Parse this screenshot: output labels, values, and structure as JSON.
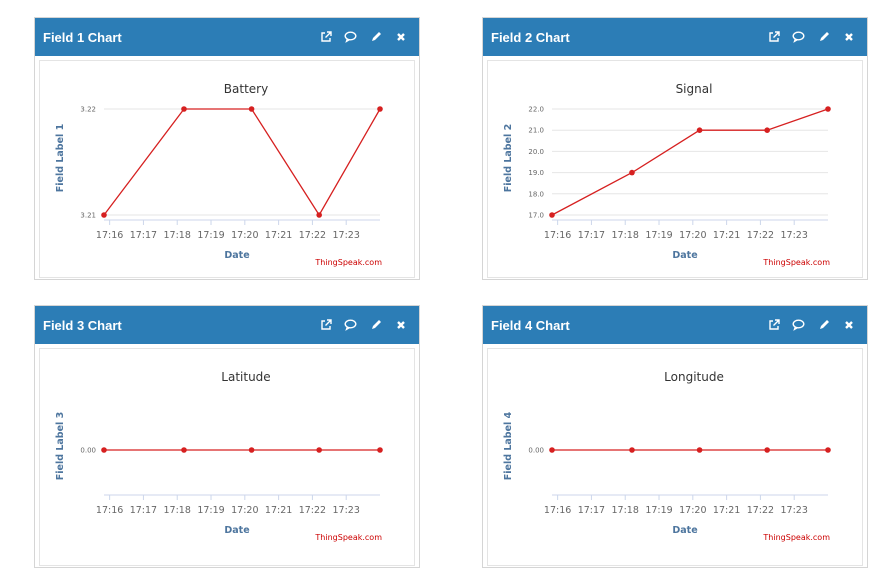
{
  "panels": [
    {
      "title": "Field 1 Chart",
      "icons": [
        "external-link-icon",
        "comment-icon",
        "pencil-icon",
        "close-icon"
      ]
    },
    {
      "title": "Field 2 Chart",
      "icons": [
        "external-link-icon",
        "comment-icon",
        "pencil-icon",
        "close-icon"
      ]
    },
    {
      "title": "Field 3 Chart",
      "icons": [
        "external-link-icon",
        "comment-icon",
        "pencil-icon",
        "close-icon"
      ]
    },
    {
      "title": "Field 4 Chart",
      "icons": [
        "external-link-icon",
        "comment-icon",
        "pencil-icon",
        "close-icon"
      ]
    }
  ],
  "colors": {
    "header": "#2c7db6",
    "line": "#d62020",
    "credit": "#cc0000",
    "axis_label": "#4d759e"
  },
  "chart_data": [
    {
      "type": "line",
      "title": "Battery",
      "xlabel": "Date",
      "ylabel": "Field Label 1",
      "x_ticks": [
        "17:16",
        "17:17",
        "17:18",
        "17:19",
        "17:20",
        "17:21",
        "17:22",
        "17:23"
      ],
      "y_ticks": [
        "3.21",
        "3.22"
      ],
      "ylim": [
        3.21,
        3.22
      ],
      "xlim": [
        "17:15:50",
        "17:24:00"
      ],
      "x": [
        "17:15:50",
        "17:18:12",
        "17:20:12",
        "17:22:12",
        "17:24:00"
      ],
      "series": [
        {
          "values": [
            3.21,
            3.22,
            3.22,
            3.21,
            3.22
          ]
        }
      ],
      "grid": true,
      "credit": "ThingSpeak.com"
    },
    {
      "type": "line",
      "title": "Signal",
      "xlabel": "Date",
      "ylabel": "Field Label 2",
      "x_ticks": [
        "17:16",
        "17:17",
        "17:18",
        "17:19",
        "17:20",
        "17:21",
        "17:22",
        "17:23"
      ],
      "y_ticks": [
        "17.0",
        "18.0",
        "19.0",
        "20.0",
        "21.0",
        "22.0"
      ],
      "ylim": [
        17,
        22
      ],
      "xlim": [
        "17:15:50",
        "17:24:00"
      ],
      "x": [
        "17:15:50",
        "17:18:12",
        "17:20:12",
        "17:22:12",
        "17:24:00"
      ],
      "series": [
        {
          "values": [
            17,
            19,
            21,
            21,
            22
          ]
        }
      ],
      "grid": true,
      "credit": "ThingSpeak.com"
    },
    {
      "type": "line",
      "title": "Latitude",
      "xlabel": "Date",
      "ylabel": "Field Label 3",
      "x_ticks": [
        "17:16",
        "17:17",
        "17:18",
        "17:19",
        "17:20",
        "17:21",
        "17:22",
        "17:23"
      ],
      "y_ticks": [
        "0.00"
      ],
      "ylim": [
        -1,
        1
      ],
      "xlim": [
        "17:15:50",
        "17:24:00"
      ],
      "x": [
        "17:15:50",
        "17:18:12",
        "17:20:12",
        "17:22:12",
        "17:24:00"
      ],
      "series": [
        {
          "values": [
            0,
            0,
            0,
            0,
            0
          ]
        }
      ],
      "grid": false,
      "credit": "ThingSpeak.com"
    },
    {
      "type": "line",
      "title": "Longitude",
      "xlabel": "Date",
      "ylabel": "Field Label 4",
      "x_ticks": [
        "17:16",
        "17:17",
        "17:18",
        "17:19",
        "17:20",
        "17:21",
        "17:22",
        "17:23"
      ],
      "y_ticks": [
        "0.00"
      ],
      "ylim": [
        -1,
        1
      ],
      "xlim": [
        "17:15:50",
        "17:24:00"
      ],
      "x": [
        "17:15:50",
        "17:18:12",
        "17:20:12",
        "17:22:12",
        "17:24:00"
      ],
      "series": [
        {
          "values": [
            0,
            0,
            0,
            0,
            0
          ]
        }
      ],
      "grid": false,
      "credit": "ThingSpeak.com"
    }
  ]
}
